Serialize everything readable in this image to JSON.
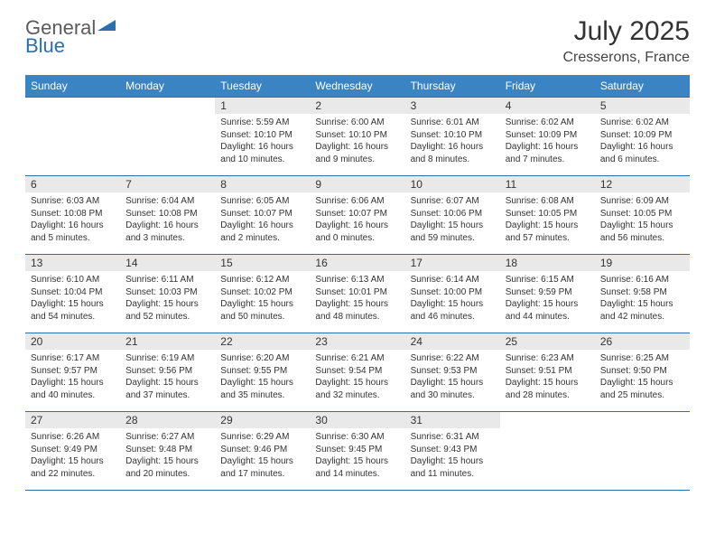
{
  "logo": {
    "part1": "General",
    "part2": "Blue"
  },
  "title": "July 2025",
  "location": "Cresserons, France",
  "colors": {
    "header_bg": "#3a84c4",
    "rule": "#2c6fb0",
    "daynum_bg": "#e9e9e9",
    "text": "#333333",
    "logo_gray": "#5b5b5b",
    "logo_blue": "#2c6fb0"
  },
  "weekdays": [
    "Sunday",
    "Monday",
    "Tuesday",
    "Wednesday",
    "Thursday",
    "Friday",
    "Saturday"
  ],
  "first_weekday_index": 2,
  "num_days": 31,
  "days": {
    "1": {
      "sunrise": "5:59 AM",
      "sunset": "10:10 PM",
      "daylight": "16 hours and 10 minutes."
    },
    "2": {
      "sunrise": "6:00 AM",
      "sunset": "10:10 PM",
      "daylight": "16 hours and 9 minutes."
    },
    "3": {
      "sunrise": "6:01 AM",
      "sunset": "10:10 PM",
      "daylight": "16 hours and 8 minutes."
    },
    "4": {
      "sunrise": "6:02 AM",
      "sunset": "10:09 PM",
      "daylight": "16 hours and 7 minutes."
    },
    "5": {
      "sunrise": "6:02 AM",
      "sunset": "10:09 PM",
      "daylight": "16 hours and 6 minutes."
    },
    "6": {
      "sunrise": "6:03 AM",
      "sunset": "10:08 PM",
      "daylight": "16 hours and 5 minutes."
    },
    "7": {
      "sunrise": "6:04 AM",
      "sunset": "10:08 PM",
      "daylight": "16 hours and 3 minutes."
    },
    "8": {
      "sunrise": "6:05 AM",
      "sunset": "10:07 PM",
      "daylight": "16 hours and 2 minutes."
    },
    "9": {
      "sunrise": "6:06 AM",
      "sunset": "10:07 PM",
      "daylight": "16 hours and 0 minutes."
    },
    "10": {
      "sunrise": "6:07 AM",
      "sunset": "10:06 PM",
      "daylight": "15 hours and 59 minutes."
    },
    "11": {
      "sunrise": "6:08 AM",
      "sunset": "10:05 PM",
      "daylight": "15 hours and 57 minutes."
    },
    "12": {
      "sunrise": "6:09 AM",
      "sunset": "10:05 PM",
      "daylight": "15 hours and 56 minutes."
    },
    "13": {
      "sunrise": "6:10 AM",
      "sunset": "10:04 PM",
      "daylight": "15 hours and 54 minutes."
    },
    "14": {
      "sunrise": "6:11 AM",
      "sunset": "10:03 PM",
      "daylight": "15 hours and 52 minutes."
    },
    "15": {
      "sunrise": "6:12 AM",
      "sunset": "10:02 PM",
      "daylight": "15 hours and 50 minutes."
    },
    "16": {
      "sunrise": "6:13 AM",
      "sunset": "10:01 PM",
      "daylight": "15 hours and 48 minutes."
    },
    "17": {
      "sunrise": "6:14 AM",
      "sunset": "10:00 PM",
      "daylight": "15 hours and 46 minutes."
    },
    "18": {
      "sunrise": "6:15 AM",
      "sunset": "9:59 PM",
      "daylight": "15 hours and 44 minutes."
    },
    "19": {
      "sunrise": "6:16 AM",
      "sunset": "9:58 PM",
      "daylight": "15 hours and 42 minutes."
    },
    "20": {
      "sunrise": "6:17 AM",
      "sunset": "9:57 PM",
      "daylight": "15 hours and 40 minutes."
    },
    "21": {
      "sunrise": "6:19 AM",
      "sunset": "9:56 PM",
      "daylight": "15 hours and 37 minutes."
    },
    "22": {
      "sunrise": "6:20 AM",
      "sunset": "9:55 PM",
      "daylight": "15 hours and 35 minutes."
    },
    "23": {
      "sunrise": "6:21 AM",
      "sunset": "9:54 PM",
      "daylight": "15 hours and 32 minutes."
    },
    "24": {
      "sunrise": "6:22 AM",
      "sunset": "9:53 PM",
      "daylight": "15 hours and 30 minutes."
    },
    "25": {
      "sunrise": "6:23 AM",
      "sunset": "9:51 PM",
      "daylight": "15 hours and 28 minutes."
    },
    "26": {
      "sunrise": "6:25 AM",
      "sunset": "9:50 PM",
      "daylight": "15 hours and 25 minutes."
    },
    "27": {
      "sunrise": "6:26 AM",
      "sunset": "9:49 PM",
      "daylight": "15 hours and 22 minutes."
    },
    "28": {
      "sunrise": "6:27 AM",
      "sunset": "9:48 PM",
      "daylight": "15 hours and 20 minutes."
    },
    "29": {
      "sunrise": "6:29 AM",
      "sunset": "9:46 PM",
      "daylight": "15 hours and 17 minutes."
    },
    "30": {
      "sunrise": "6:30 AM",
      "sunset": "9:45 PM",
      "daylight": "15 hours and 14 minutes."
    },
    "31": {
      "sunrise": "6:31 AM",
      "sunset": "9:43 PM",
      "daylight": "15 hours and 11 minutes."
    }
  },
  "labels": {
    "sunrise": "Sunrise:",
    "sunset": "Sunset:",
    "daylight": "Daylight:"
  }
}
